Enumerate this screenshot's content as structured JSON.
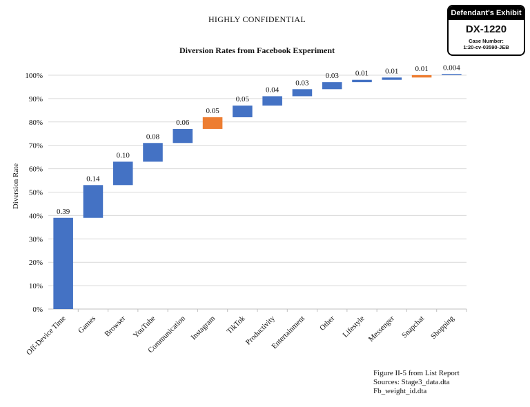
{
  "header": {
    "confidential": "HIGHLY CONFIDENTIAL"
  },
  "exhibit": {
    "title": "Defendant's Exhibit",
    "number": "DX-1220",
    "case_label": "Case Number:",
    "case_number": "1:20-cv-03590-JEB"
  },
  "chart_data": {
    "type": "bar",
    "subtype": "waterfall",
    "title": "Diversion Rates from Facebook Experiment",
    "xlabel": "",
    "ylabel": "Diversion Rate",
    "ylim": [
      0,
      1.05
    ],
    "yticks": [
      "0%",
      "10%",
      "20%",
      "30%",
      "40%",
      "50%",
      "60%",
      "70%",
      "80%",
      "90%",
      "100%"
    ],
    "grid": true,
    "categories": [
      "Off-Device Time",
      "Games",
      "Browser",
      "YouTube",
      "Communication",
      "Instagram",
      "TikTok",
      "Productivity",
      "Entertainment",
      "Other",
      "Lifestyle",
      "Messenger",
      "Snapchat",
      "Shopping"
    ],
    "values": [
      0.39,
      0.14,
      0.1,
      0.08,
      0.06,
      0.05,
      0.05,
      0.04,
      0.03,
      0.03,
      0.01,
      0.01,
      0.01,
      0.004
    ],
    "labels": [
      "0.39",
      "0.14",
      "0.10",
      "0.08",
      "0.06",
      "0.05",
      "0.05",
      "0.04",
      "0.03",
      "0.03",
      "0.01",
      "0.01",
      "0.01",
      "0.004"
    ],
    "colors": [
      "#4472c4",
      "#4472c4",
      "#4472c4",
      "#4472c4",
      "#4472c4",
      "#ed7d31",
      "#4472c4",
      "#4472c4",
      "#4472c4",
      "#4472c4",
      "#4472c4",
      "#4472c4",
      "#ed7d31",
      "#4472c4"
    ]
  },
  "footnote": {
    "line1": "Figure II-5 from List Report",
    "line2": "Sources: Stage3_data.dta",
    "line3": "Fb_weight_id.dta"
  }
}
